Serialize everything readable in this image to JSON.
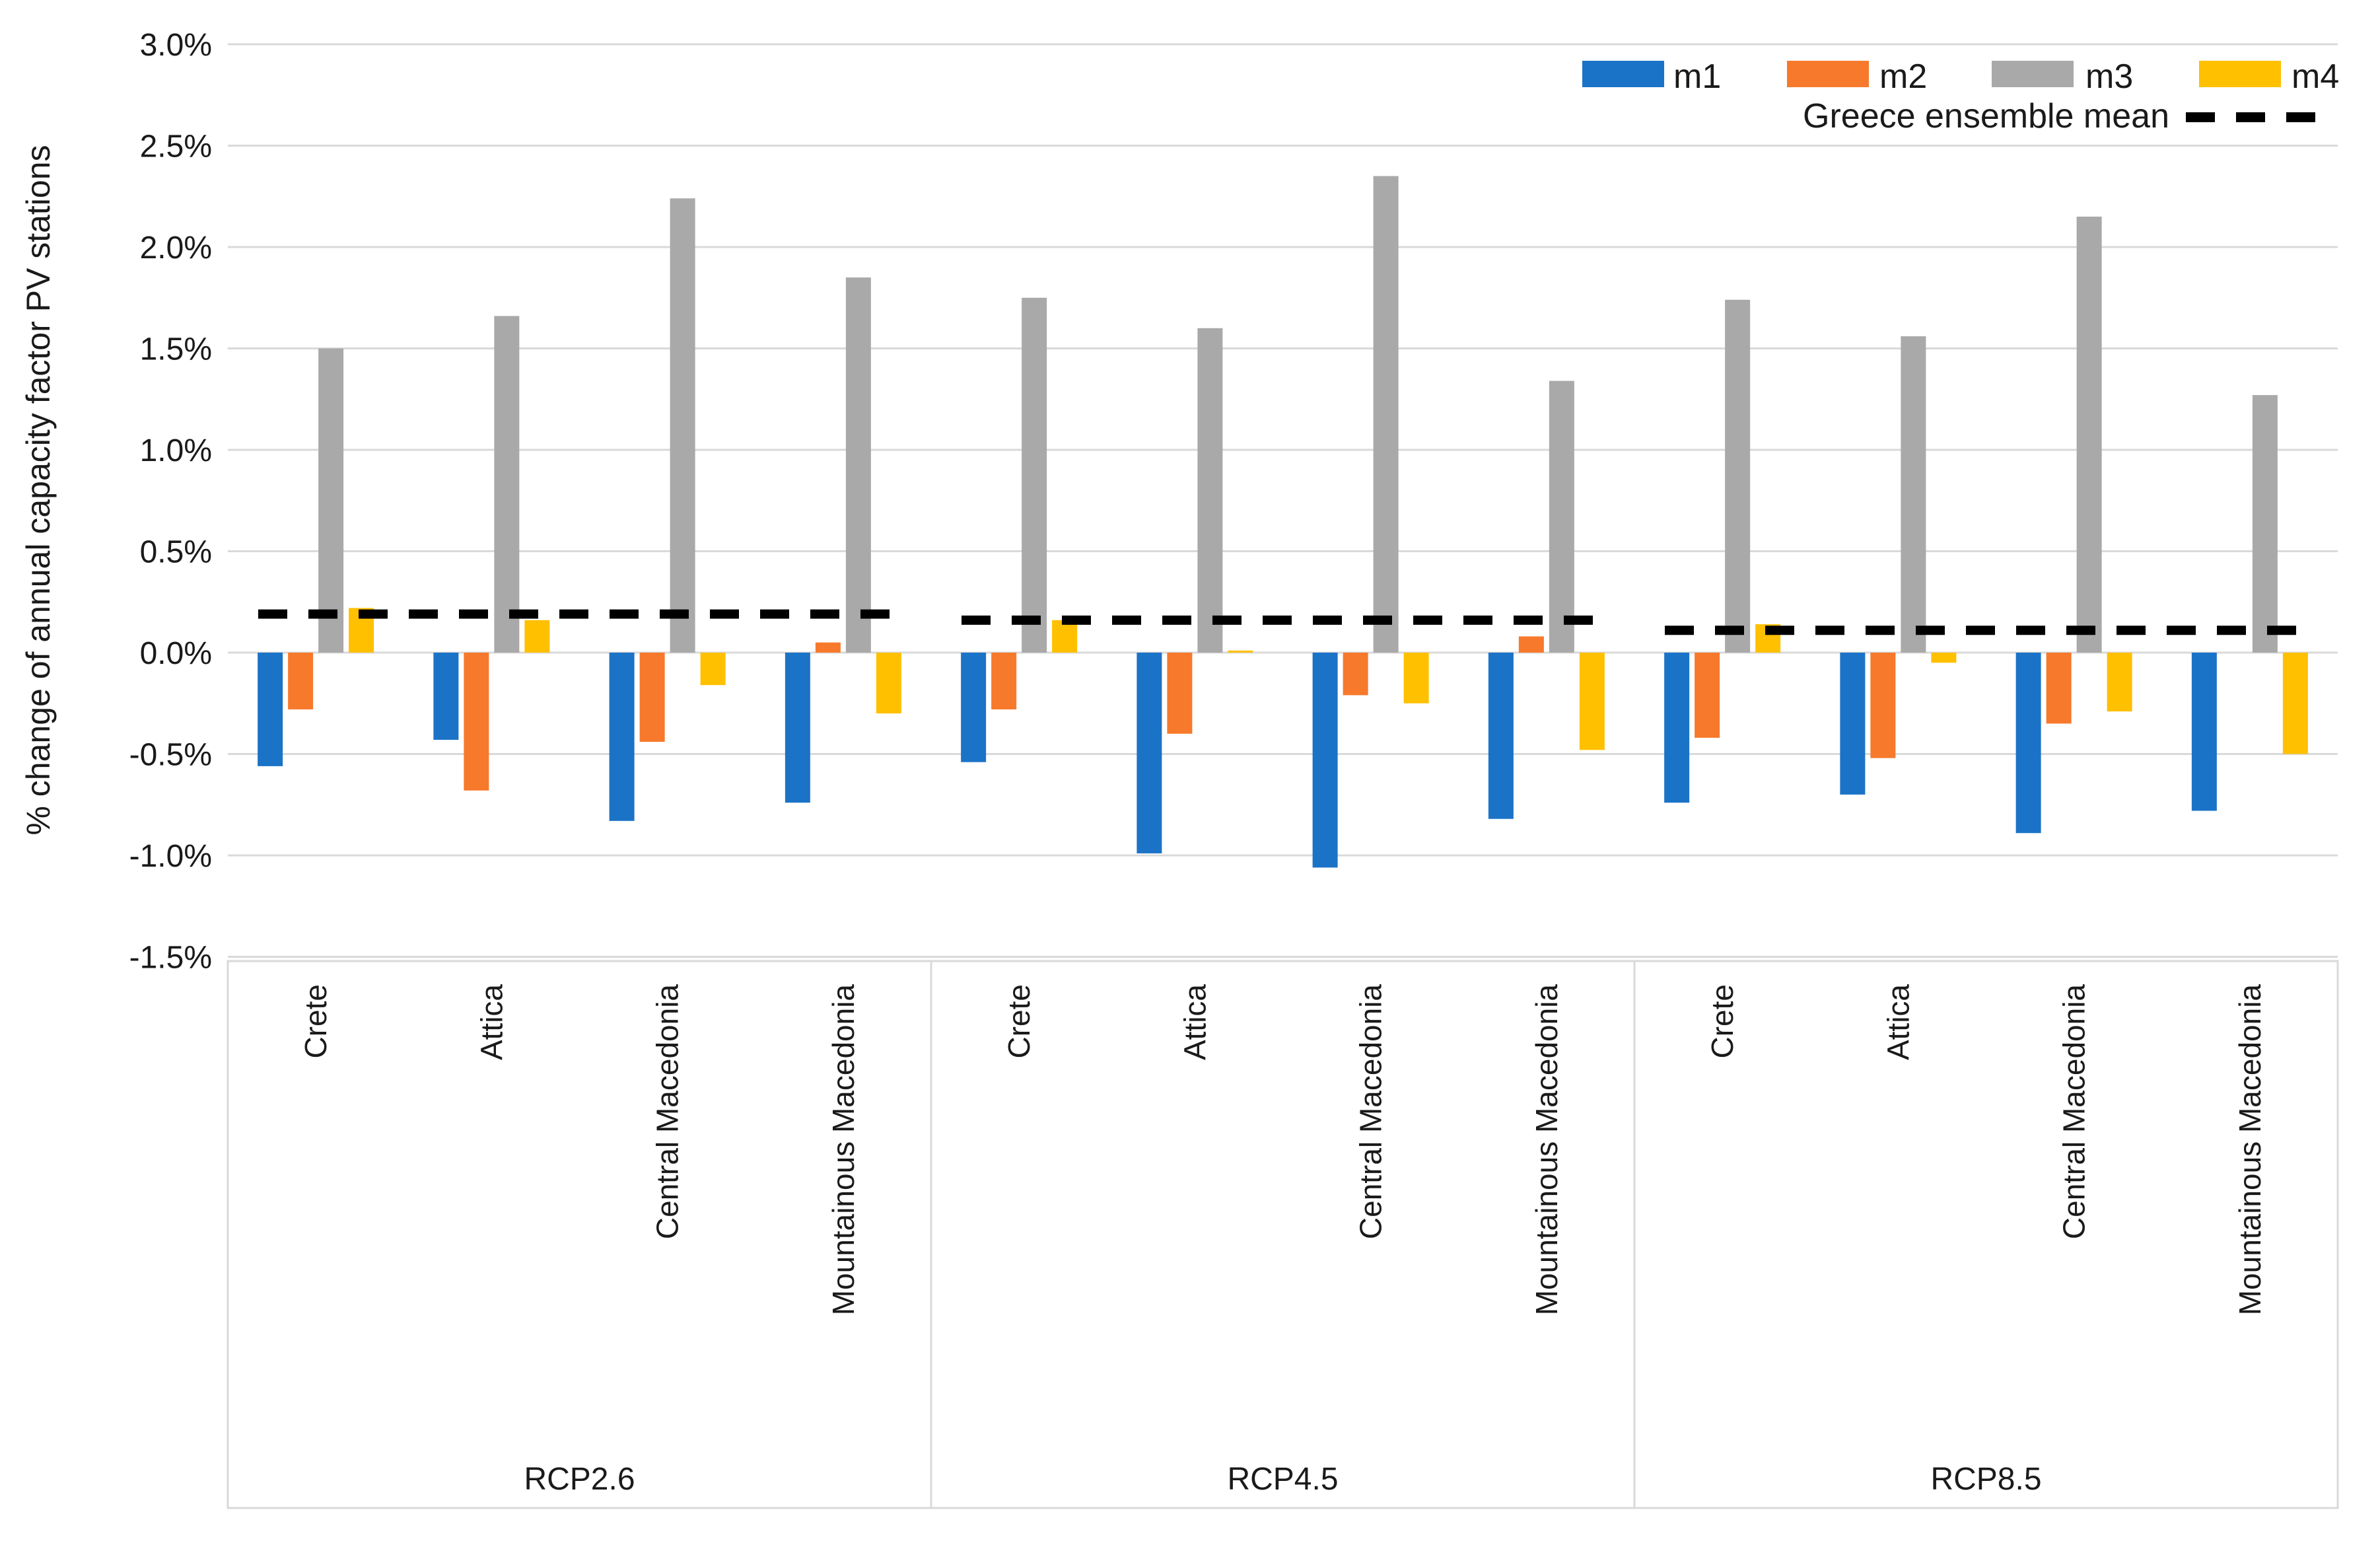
{
  "chart_data": {
    "type": "bar",
    "title": "",
    "ylabel": "% change of annual capacity factor PV stations",
    "unit": "percent",
    "ylim": [
      -1.5,
      3.0
    ],
    "grid": true,
    "legend_position": "top-right",
    "y_ticks": [
      "3.0%",
      "2.5%",
      "2.0%",
      "1.5%",
      "1.0%",
      "0.5%",
      "0.0%",
      "-0.5%",
      "-1.0%",
      "-1.5%"
    ],
    "y_tick_values": [
      3.0,
      2.5,
      2.0,
      1.5,
      1.0,
      0.5,
      0.0,
      -0.5,
      -1.0,
      -1.5
    ],
    "scenarios": [
      "RCP2.6",
      "RCP4.5",
      "RCP8.5"
    ],
    "regions": [
      "Crete",
      "Attica",
      "Central Macedonia",
      "Mountainous Macedonia"
    ],
    "series": [
      {
        "name": "m1",
        "color": "#1B73C7",
        "values": [
          [
            -0.56,
            -0.43,
            -0.83,
            -0.74
          ],
          [
            -0.54,
            -0.99,
            -1.06,
            -0.82
          ],
          [
            -0.74,
            -0.7,
            -0.89,
            -0.78
          ]
        ]
      },
      {
        "name": "m2",
        "color": "#F7792B",
        "values": [
          [
            -0.28,
            -0.68,
            -0.44,
            0.05
          ],
          [
            -0.28,
            -0.4,
            -0.21,
            0.08
          ],
          [
            -0.42,
            -0.52,
            -0.35,
            0.0
          ]
        ]
      },
      {
        "name": "m3",
        "color": "#A9A9A9",
        "values": [
          [
            1.5,
            1.66,
            2.24,
            1.85
          ],
          [
            1.75,
            1.6,
            2.35,
            1.34
          ],
          [
            1.74,
            1.56,
            2.15,
            1.27
          ]
        ]
      },
      {
        "name": "m4",
        "color": "#FFC000",
        "values": [
          [
            0.22,
            0.16,
            -0.16,
            -0.3
          ],
          [
            0.16,
            0.01,
            -0.25,
            -0.48
          ],
          [
            0.14,
            -0.05,
            -0.29,
            -0.5
          ]
        ]
      }
    ],
    "ensemble_mean": {
      "name": "Greece  ensemble mean",
      "color": "#000000",
      "style": "dashed",
      "values": [
        0.19,
        0.16,
        0.11
      ]
    },
    "colors": {
      "gridline": "#D9D9D9",
      "axis_box": "#D9D9D9",
      "text": "#1a1a1a",
      "background": "#ffffff"
    }
  }
}
